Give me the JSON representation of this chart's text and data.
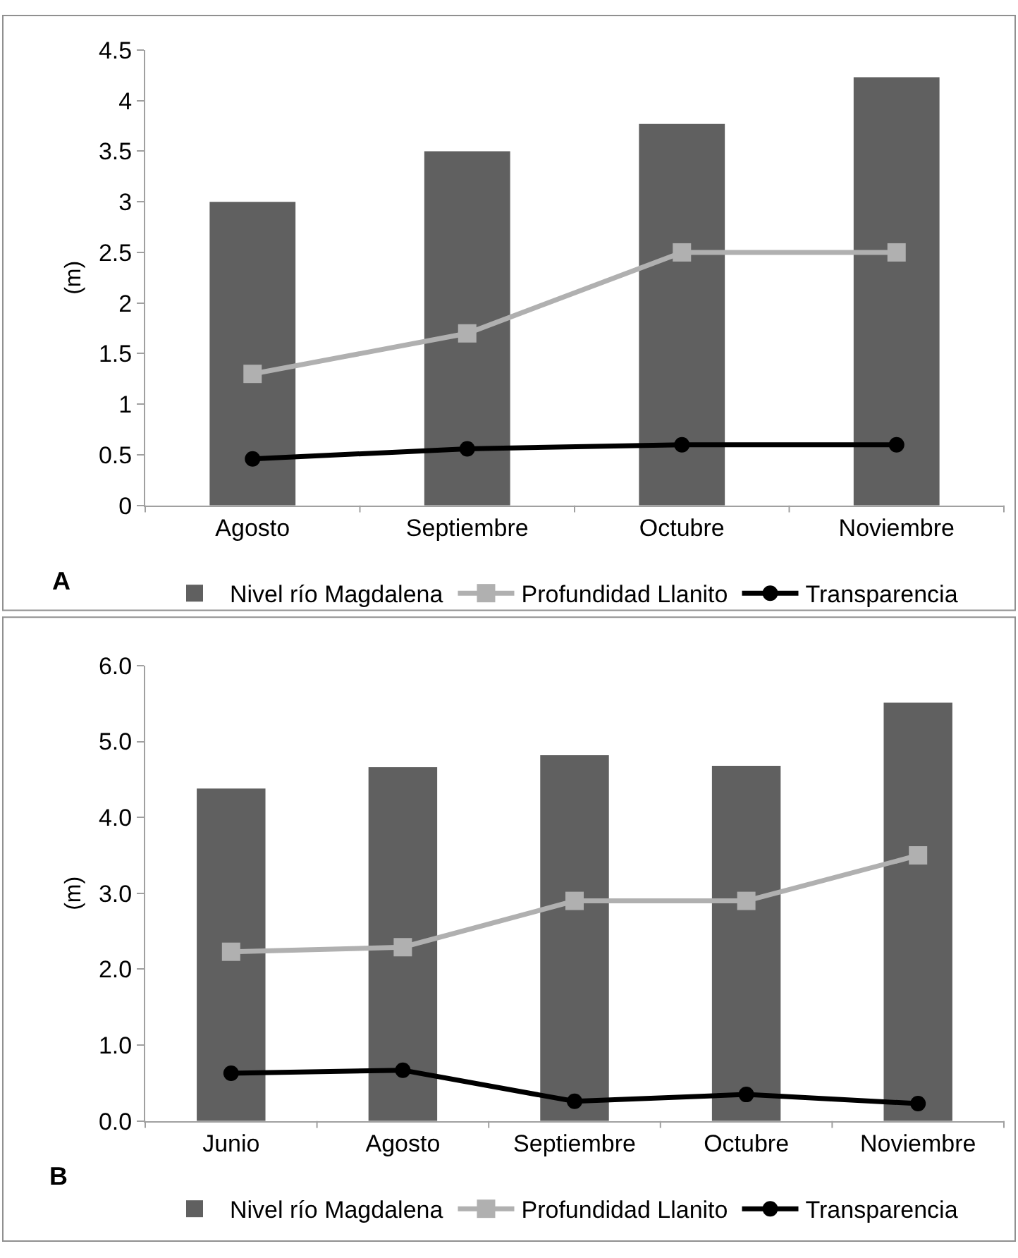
{
  "chart_data": [
    {
      "type": "bar",
      "categories": [
        "Agosto",
        "Septiembre",
        "Octubre",
        "Noviembre"
      ],
      "ylabel": "(m)",
      "ylim": [
        0,
        4.5
      ],
      "yticks": [
        0,
        0.5,
        1,
        1.5,
        2,
        2.5,
        3,
        3.5,
        4,
        4.5
      ],
      "legend": "bottom",
      "annotations": [
        "A"
      ],
      "series": [
        {
          "name": "Nivel río Magdalena",
          "color": "#606060",
          "values": [
            3.0,
            3.5,
            3.77,
            4.23
          ]
        },
        {
          "name": "Profundidad Llanito",
          "type": "line",
          "color": "#b0b0b0",
          "marker": "square",
          "values": [
            1.3,
            1.7,
            2.5,
            2.5
          ]
        },
        {
          "name": "Transparencia",
          "type": "line",
          "color": "#000000",
          "marker": "circle",
          "values": [
            0.46,
            0.56,
            0.6,
            0.6
          ]
        }
      ]
    },
    {
      "type": "bar",
      "categories": [
        "Junio",
        "Agosto",
        "Septiembre",
        "Octubre",
        "Noviembre"
      ],
      "ylabel": "(m)",
      "ylim": [
        0,
        6
      ],
      "yticks": [
        {
          "value": 0,
          "label": "0.0"
        },
        {
          "value": 1,
          "label": "1.0"
        },
        {
          "value": 2,
          "label": "2.0"
        },
        {
          "value": 3,
          "label": "3.0"
        },
        {
          "value": 4,
          "label": "4.0"
        },
        {
          "value": 5,
          "label": "5.0"
        },
        {
          "value": 6,
          "label": "6.0"
        }
      ],
      "legend": "bottom",
      "annotations": [
        "B"
      ],
      "series": [
        {
          "name": "Nivel río Magdalena",
          "color": "#606060",
          "values": [
            4.38,
            4.66,
            4.82,
            4.68,
            5.51
          ]
        },
        {
          "name": "Profundidad Llanito",
          "type": "line",
          "color": "#b0b0b0",
          "marker": "square",
          "values": [
            2.23,
            2.29,
            2.9,
            2.9,
            3.5
          ]
        },
        {
          "name": "Transparencia",
          "type": "line",
          "color": "#000000",
          "marker": "circle",
          "values": [
            0.63,
            0.67,
            0.26,
            0.35,
            0.23
          ]
        }
      ]
    }
  ]
}
